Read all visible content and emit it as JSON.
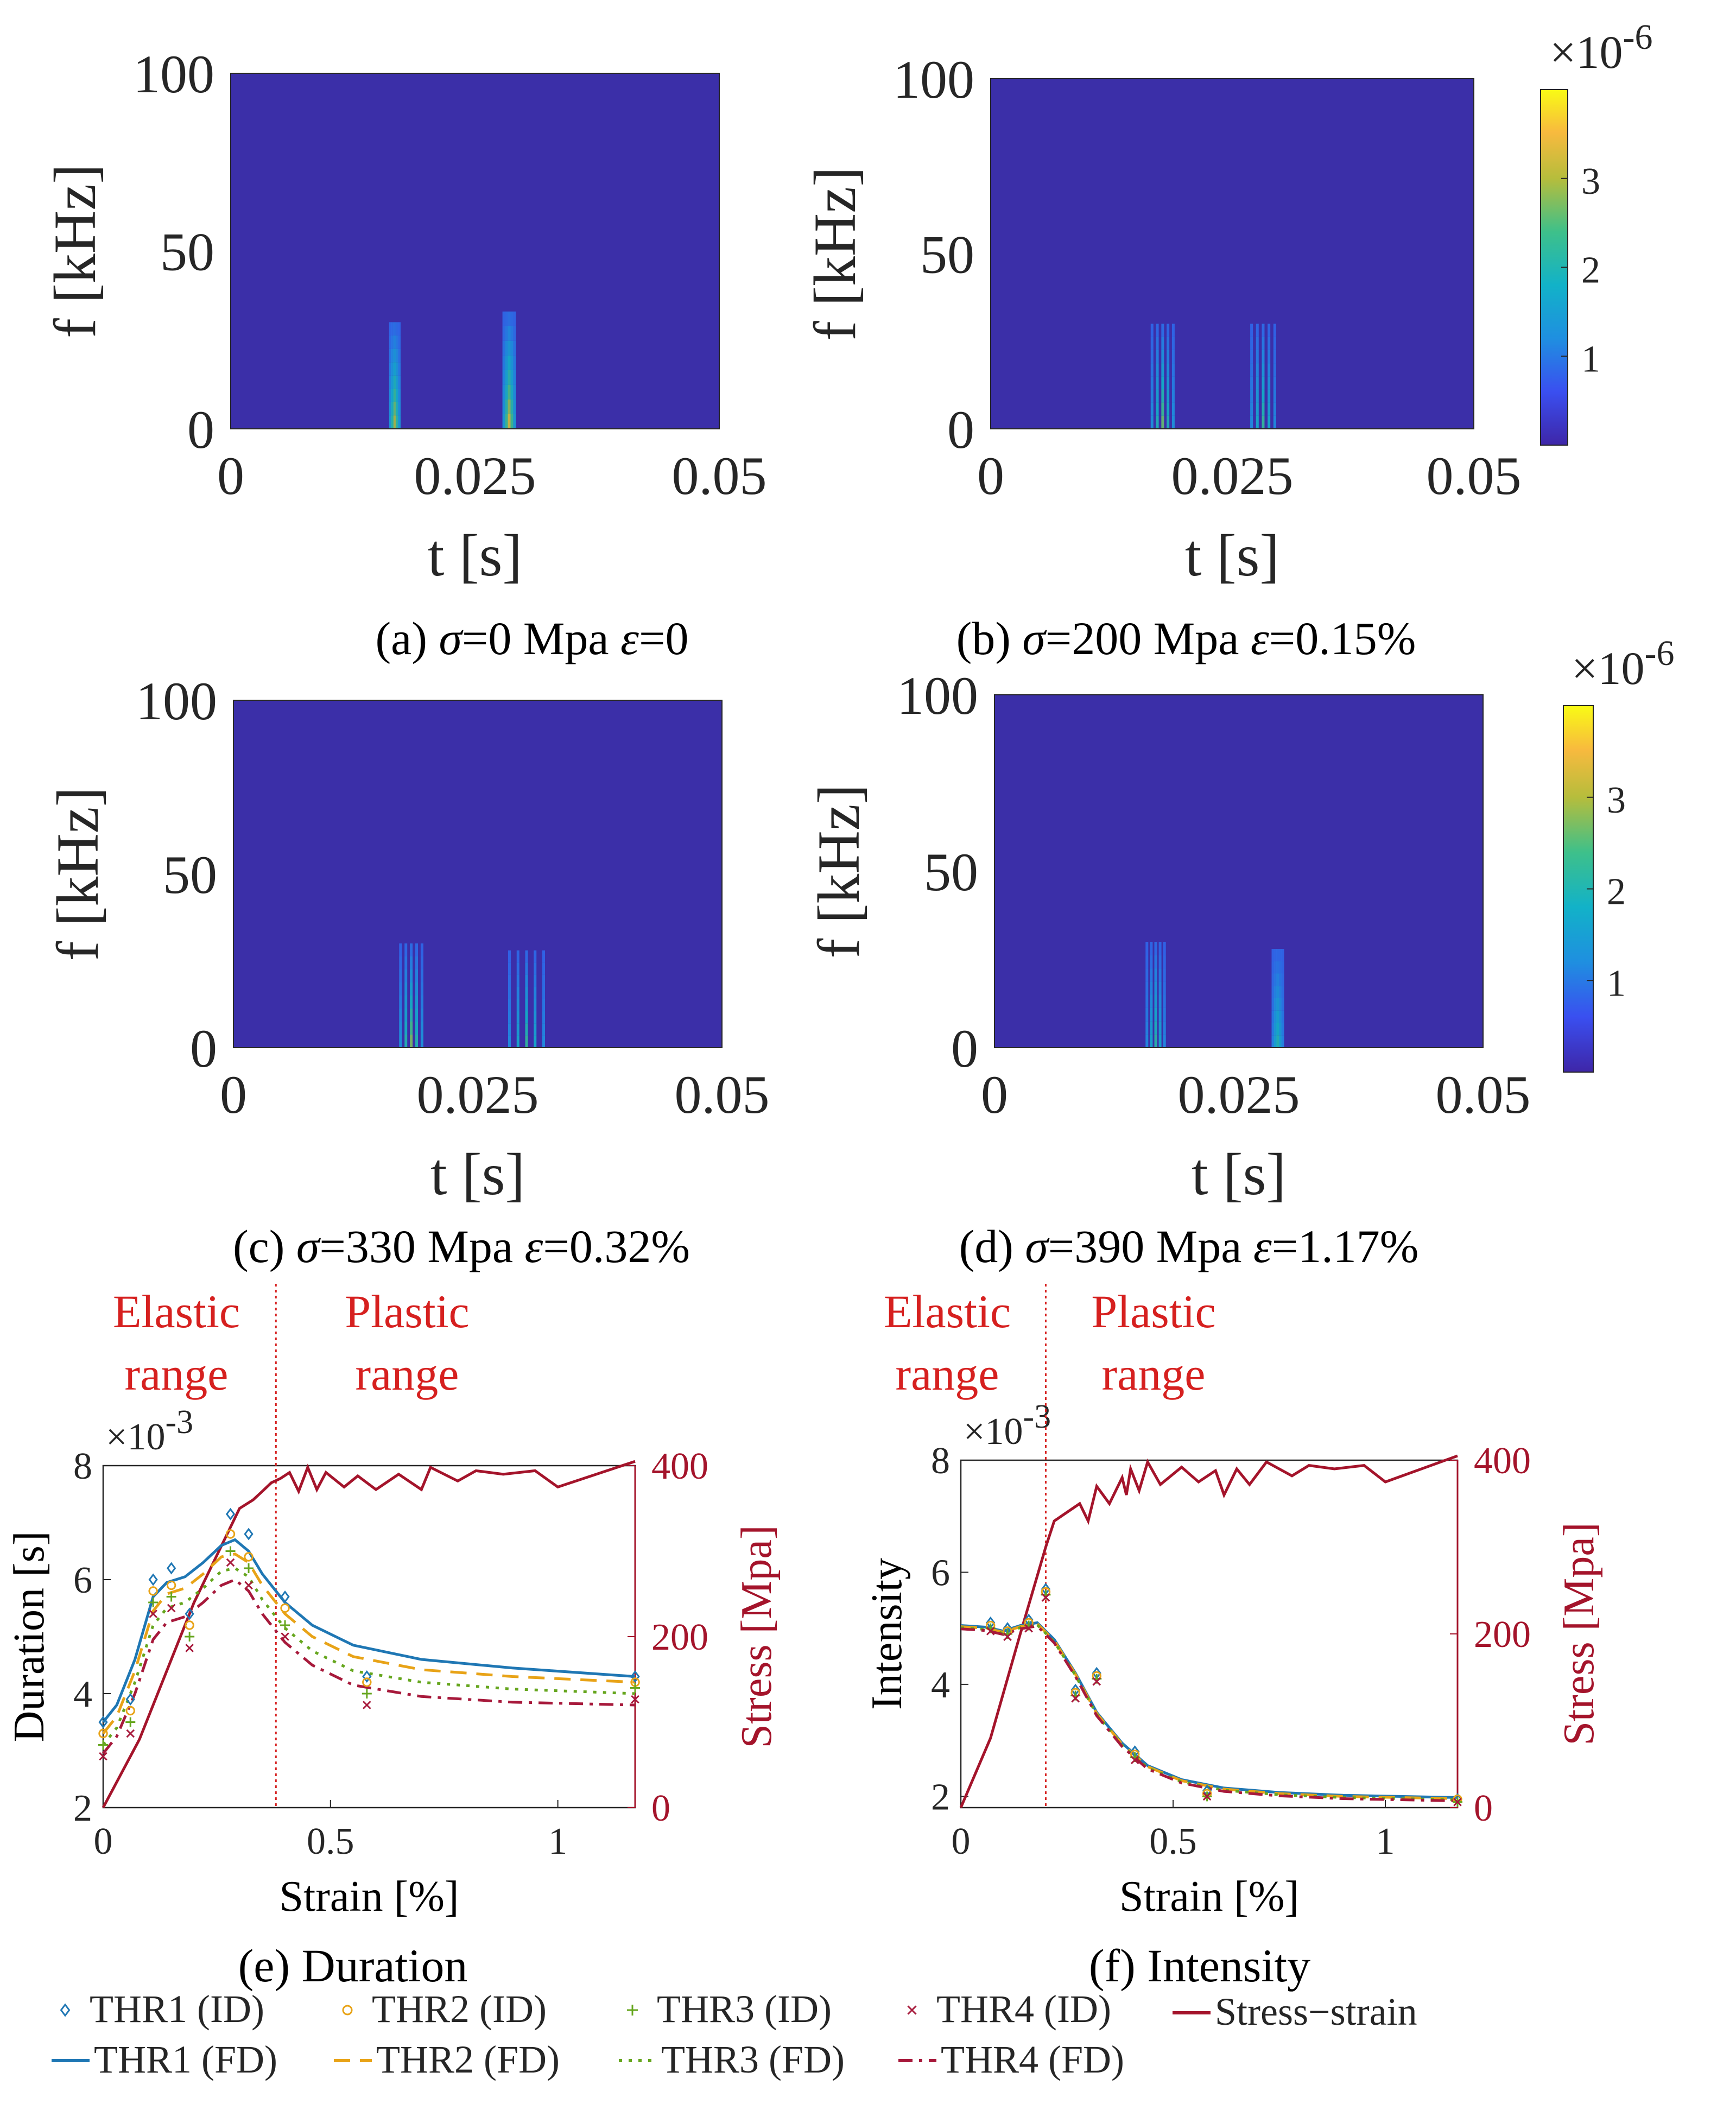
{
  "colors": {
    "bg_panel": "#3b2fa8",
    "thr1": "#1f77b4",
    "thr2": "#e8a317",
    "thr3": "#66a61e",
    "thr4": "#a7193b",
    "stress": "#a4142b",
    "red_text": "#d6201f",
    "axis": "#262626"
  },
  "chart_data": [
    {
      "type": "heatmap",
      "id": "a",
      "caption_prefix": "(a) ",
      "caption_sigma": "σ",
      "caption_mid": "=0 Mpa ",
      "caption_eps": "ε",
      "caption_tail": "=0",
      "xlabel": "t [s]",
      "ylabel": "f [kHz]",
      "xlim": [
        0,
        0.05
      ],
      "ylim": [
        0,
        100
      ],
      "xticks": [
        "0",
        "0.025",
        "0.05"
      ],
      "yticks": [
        "0",
        "50",
        "100"
      ],
      "bursts": [
        {
          "t": 0.0168,
          "w": 0.0009,
          "fmax": 30,
          "amp": 0.9
        },
        {
          "t": 0.0285,
          "w": 0.0011,
          "fmax": 33,
          "amp": 1.0
        }
      ]
    },
    {
      "type": "heatmap",
      "id": "b",
      "caption_prefix": "(b) ",
      "caption_sigma": "σ",
      "caption_mid": "=200 Mpa ",
      "caption_eps": "ε",
      "caption_tail": "=0.15%",
      "xlabel": "t [s]",
      "ylabel": "f [kHz]",
      "xlim": [
        0,
        0.05
      ],
      "ylim": [
        0,
        100
      ],
      "xticks": [
        "0",
        "0.025",
        "0.05"
      ],
      "yticks": [
        "0",
        "50",
        "100"
      ],
      "colorbar": {
        "multiplier": "×10",
        "exponent": "-6",
        "ticks": [
          "1",
          "2",
          "3"
        ],
        "range": [
          0,
          4
        ]
      },
      "bursts": [
        {
          "t": 0.0178,
          "w": 0.0022,
          "fmax": 30,
          "amp": 0.75
        },
        {
          "t": 0.0282,
          "w": 0.0024,
          "fmax": 30,
          "amp": 0.6
        }
      ]
    },
    {
      "type": "heatmap",
      "id": "c",
      "caption_prefix": "(c) ",
      "caption_sigma": "σ",
      "caption_mid": "=330 Mpa ",
      "caption_eps": "ε",
      "caption_tail": "=0.32%",
      "xlabel": "t [s]",
      "ylabel": "f [kHz]",
      "xlim": [
        0,
        0.05
      ],
      "ylim": [
        0,
        100
      ],
      "xticks": [
        "0",
        "0.025",
        "0.05"
      ],
      "yticks": [
        "0",
        "50",
        "100"
      ],
      "bursts": [
        {
          "t": 0.0182,
          "w": 0.0022,
          "fmax": 30,
          "amp": 0.8
        },
        {
          "t": 0.03,
          "w": 0.0035,
          "fmax": 28,
          "amp": 0.6
        }
      ]
    },
    {
      "type": "heatmap",
      "id": "d",
      "caption_prefix": "(d) ",
      "caption_sigma": "σ",
      "caption_mid": "=390 Mpa ",
      "caption_eps": "ε",
      "caption_tail": "=1.17%",
      "xlabel": "t [s]",
      "ylabel": "f [kHz]",
      "xlim": [
        0,
        0.05
      ],
      "ylim": [
        0,
        100
      ],
      "xticks": [
        "0",
        "0.025",
        "0.05"
      ],
      "yticks": [
        "0",
        "50",
        "100"
      ],
      "colorbar": {
        "multiplier": "×10",
        "exponent": "-6",
        "ticks": [
          "1",
          "2",
          "3"
        ],
        "range": [
          0,
          4
        ]
      },
      "bursts": [
        {
          "t": 0.0165,
          "w": 0.0018,
          "fmax": 30,
          "amp": 0.55
        },
        {
          "t": 0.029,
          "w": 0.001,
          "fmax": 28,
          "amp": 0.5
        }
      ]
    },
    {
      "type": "line",
      "id": "e",
      "caption": "(e) Duration",
      "xlabel": "Strain [%]",
      "ylabel": "Duration [s]",
      "y2label": "Stress [Mpa]",
      "xlim": [
        0,
        1.17
      ],
      "ylim": [
        2,
        8
      ],
      "y2lim": [
        0,
        400
      ],
      "xticks": [
        "0",
        "0.5",
        "1"
      ],
      "yticks": [
        "2",
        "4",
        "6",
        "8"
      ],
      "y2ticks": [
        "0",
        "200",
        "400"
      ],
      "multiplier": "×10",
      "exponent": "-3",
      "elastic_label": [
        "Elastic",
        "range"
      ],
      "plastic_label": [
        "Plastic",
        "range"
      ],
      "boundary_x": 0.38,
      "id_series": [
        {
          "name": "THR1 (ID)",
          "marker": "diamond",
          "x": [
            0,
            0.06,
            0.11,
            0.15,
            0.19,
            0.28,
            0.32,
            0.4,
            0.58,
            1.17
          ],
          "y": [
            3.5,
            3.9,
            6.0,
            6.2,
            5.4,
            7.15,
            6.8,
            5.7,
            4.3,
            4.3
          ]
        },
        {
          "name": "THR2 (ID)",
          "marker": "circle",
          "x": [
            0,
            0.06,
            0.11,
            0.15,
            0.19,
            0.28,
            0.32,
            0.4,
            0.58,
            1.17
          ],
          "y": [
            3.3,
            3.7,
            5.8,
            5.9,
            5.2,
            6.8,
            6.4,
            5.5,
            4.2,
            4.2
          ]
        },
        {
          "name": "THR3 (ID)",
          "marker": "plus",
          "x": [
            0,
            0.06,
            0.11,
            0.15,
            0.19,
            0.28,
            0.32,
            0.4,
            0.58,
            1.17
          ],
          "y": [
            3.1,
            3.5,
            5.6,
            5.7,
            5.0,
            6.5,
            6.2,
            5.2,
            4.0,
            4.1
          ]
        },
        {
          "name": "THR4 (ID)",
          "marker": "x",
          "x": [
            0,
            0.06,
            0.11,
            0.15,
            0.19,
            0.28,
            0.32,
            0.4,
            0.58,
            1.17
          ],
          "y": [
            2.9,
            3.3,
            5.4,
            5.5,
            4.8,
            6.3,
            5.9,
            5.0,
            3.8,
            3.9
          ]
        }
      ],
      "fd_series": [
        {
          "name": "THR1 (FD)",
          "dash": "solid",
          "x": [
            0,
            0.03,
            0.07,
            0.11,
            0.14,
            0.18,
            0.22,
            0.26,
            0.29,
            0.32,
            0.35,
            0.4,
            0.46,
            0.55,
            0.7,
            0.9,
            1.17
          ],
          "y": [
            3.5,
            3.8,
            4.6,
            5.7,
            5.95,
            6.05,
            6.3,
            6.6,
            6.7,
            6.5,
            6.1,
            5.6,
            5.2,
            4.85,
            4.6,
            4.45,
            4.3
          ]
        },
        {
          "name": "THR2 (FD)",
          "dash": "dashed",
          "x": [
            0,
            0.03,
            0.07,
            0.11,
            0.14,
            0.18,
            0.22,
            0.26,
            0.29,
            0.32,
            0.35,
            0.4,
            0.46,
            0.55,
            0.7,
            0.9,
            1.17
          ],
          "y": [
            3.3,
            3.6,
            4.4,
            5.45,
            5.75,
            5.85,
            6.1,
            6.4,
            6.45,
            6.3,
            5.9,
            5.4,
            5.0,
            4.65,
            4.42,
            4.3,
            4.2
          ]
        },
        {
          "name": "THR3 (FD)",
          "dash": "dotted",
          "x": [
            0,
            0.03,
            0.07,
            0.11,
            0.14,
            0.18,
            0.22,
            0.26,
            0.29,
            0.32,
            0.35,
            0.4,
            0.46,
            0.55,
            0.7,
            0.9,
            1.17
          ],
          "y": [
            3.1,
            3.4,
            4.2,
            5.2,
            5.5,
            5.6,
            5.85,
            6.15,
            6.2,
            6.05,
            5.65,
            5.15,
            4.75,
            4.4,
            4.2,
            4.08,
            4.0
          ]
        },
        {
          "name": "THR4 (FD)",
          "dash": "dashdot",
          "x": [
            0,
            0.03,
            0.07,
            0.11,
            0.14,
            0.18,
            0.22,
            0.26,
            0.29,
            0.32,
            0.35,
            0.4,
            0.46,
            0.55,
            0.7,
            0.9,
            1.17
          ],
          "y": [
            2.95,
            3.25,
            4.0,
            4.95,
            5.25,
            5.35,
            5.6,
            5.9,
            6.0,
            5.8,
            5.4,
            4.9,
            4.5,
            4.15,
            3.95,
            3.85,
            3.8
          ]
        }
      ],
      "stress_strain": {
        "name": "Stress−strain",
        "x": [
          0,
          0.08,
          0.2,
          0.3,
          0.33,
          0.35,
          0.37,
          0.39,
          0.41,
          0.43,
          0.45,
          0.47,
          0.49,
          0.53,
          0.56,
          0.6,
          0.65,
          0.7,
          0.72,
          0.78,
          0.82,
          0.88,
          0.95,
          1.0,
          1.17
        ],
        "y": [
          0,
          80,
          240,
          350,
          360,
          370,
          380,
          385,
          392,
          370,
          398,
          372,
          392,
          375,
          388,
          372,
          390,
          372,
          398,
          382,
          394,
          390,
          394,
          375,
          405
        ]
      }
    },
    {
      "type": "line",
      "id": "f",
      "caption": "(f) Intensity",
      "xlabel": "Strain [%]",
      "ylabel": "Intensity",
      "y2label": "Stress [Mpa]",
      "xlim": [
        0,
        1.17
      ],
      "ylim": [
        1.8,
        8
      ],
      "y2lim": [
        0,
        400
      ],
      "xticks": [
        "0",
        "0.5",
        "1"
      ],
      "yticks": [
        "2",
        "4",
        "6",
        "8"
      ],
      "y2ticks": [
        "0",
        "200",
        "400"
      ],
      "multiplier": "×10",
      "exponent": "-3",
      "elastic_label": [
        "Elastic",
        "range"
      ],
      "plastic_label": [
        "Plastic",
        "range"
      ],
      "boundary_x": 0.2,
      "id_series": [
        {
          "name": "THR1 (ID)",
          "marker": "diamond",
          "x": [
            0.07,
            0.11,
            0.16,
            0.2,
            0.27,
            0.32,
            0.41,
            0.58,
            1.17
          ],
          "y": [
            5.1,
            5.0,
            5.15,
            5.7,
            3.9,
            4.2,
            2.8,
            2.1,
            1.95
          ]
        },
        {
          "name": "THR2 (ID)",
          "marker": "circle",
          "x": [
            0.07,
            0.11,
            0.16,
            0.2,
            0.27,
            0.32,
            0.41,
            0.58,
            1.17
          ],
          "y": [
            5.05,
            4.95,
            5.1,
            5.65,
            3.85,
            4.15,
            2.75,
            2.05,
            1.95
          ]
        },
        {
          "name": "THR3 (ID)",
          "marker": "plus",
          "x": [
            0.07,
            0.11,
            0.16,
            0.2,
            0.27,
            0.32,
            0.41,
            0.58,
            1.17
          ],
          "y": [
            5.0,
            4.9,
            5.05,
            5.6,
            3.8,
            4.1,
            2.7,
            2.0,
            1.9
          ]
        },
        {
          "name": "THR4 (ID)",
          "marker": "x",
          "x": [
            0.07,
            0.11,
            0.16,
            0.2,
            0.27,
            0.32,
            0.41,
            0.58,
            1.17
          ],
          "y": [
            4.95,
            4.85,
            5.0,
            5.55,
            3.75,
            4.05,
            2.65,
            2.0,
            1.9
          ]
        }
      ],
      "fd_series": [
        {
          "name": "THR1 (FD)",
          "dash": "solid",
          "x": [
            0,
            0.06,
            0.1,
            0.14,
            0.18,
            0.22,
            0.27,
            0.32,
            0.38,
            0.44,
            0.52,
            0.62,
            0.75,
            0.9,
            1.17
          ],
          "y": [
            5.05,
            5.02,
            4.95,
            5.05,
            5.1,
            4.8,
            4.2,
            3.5,
            2.95,
            2.55,
            2.3,
            2.15,
            2.07,
            2.02,
            1.98
          ]
        },
        {
          "name": "THR2 (FD)",
          "dash": "dashed",
          "x": [
            0,
            0.06,
            0.1,
            0.14,
            0.18,
            0.22,
            0.27,
            0.32,
            0.38,
            0.44,
            0.52,
            0.62,
            0.75,
            0.9,
            1.17
          ],
          "y": [
            5.03,
            5.0,
            4.93,
            5.03,
            5.08,
            4.78,
            4.18,
            3.48,
            2.93,
            2.53,
            2.28,
            2.13,
            2.05,
            2.0,
            1.96
          ]
        },
        {
          "name": "THR3 (FD)",
          "dash": "dotted",
          "x": [
            0,
            0.06,
            0.1,
            0.14,
            0.18,
            0.22,
            0.27,
            0.32,
            0.38,
            0.44,
            0.52,
            0.62,
            0.75,
            0.9,
            1.17
          ],
          "y": [
            5.01,
            4.98,
            4.91,
            5.01,
            5.06,
            4.76,
            4.16,
            3.46,
            2.91,
            2.51,
            2.26,
            2.11,
            2.03,
            1.98,
            1.94
          ]
        },
        {
          "name": "THR4 (FD)",
          "dash": "dashdot",
          "x": [
            0,
            0.06,
            0.1,
            0.14,
            0.18,
            0.22,
            0.27,
            0.32,
            0.38,
            0.44,
            0.52,
            0.62,
            0.75,
            0.9,
            1.17
          ],
          "y": [
            4.99,
            4.96,
            4.89,
            4.99,
            5.04,
            4.74,
            4.14,
            3.44,
            2.89,
            2.49,
            2.24,
            2.09,
            2.01,
            1.96,
            1.92
          ]
        }
      ],
      "stress_strain": {
        "name": "Stress−strain",
        "x": [
          0,
          0.07,
          0.14,
          0.2,
          0.22,
          0.25,
          0.28,
          0.3,
          0.32,
          0.35,
          0.38,
          0.39,
          0.4,
          0.42,
          0.44,
          0.47,
          0.52,
          0.56,
          0.6,
          0.62,
          0.65,
          0.68,
          0.72,
          0.78,
          0.82,
          0.88,
          0.95,
          1.0,
          1.17
        ],
        "y": [
          0,
          80,
          200,
          300,
          330,
          340,
          350,
          330,
          370,
          350,
          380,
          360,
          390,
          365,
          398,
          372,
          392,
          375,
          388,
          360,
          390,
          372,
          398,
          382,
          394,
          390,
          394,
          375,
          405
        ]
      }
    }
  ],
  "legend": {
    "items": [
      {
        "label": "THR1 (ID)",
        "kind": "marker",
        "marker": "diamond",
        "series": "thr1"
      },
      {
        "label": "THR2 (ID)",
        "kind": "marker",
        "marker": "circle",
        "series": "thr2"
      },
      {
        "label": "THR3 (ID)",
        "kind": "marker",
        "marker": "plus",
        "series": "thr3"
      },
      {
        "label": "THR4 (ID)",
        "kind": "marker",
        "marker": "x",
        "series": "thr4"
      },
      {
        "label": "Stress−strain",
        "kind": "line",
        "dash": "solid",
        "series": "stress"
      },
      {
        "label": "THR1 (FD)",
        "kind": "line",
        "dash": "solid",
        "series": "thr1"
      },
      {
        "label": "THR2 (FD)",
        "kind": "line",
        "dash": "dashed",
        "series": "thr2"
      },
      {
        "label": "THR3 (FD)",
        "kind": "line",
        "dash": "dotted",
        "series": "thr3"
      },
      {
        "label": "THR4 (FD)",
        "kind": "line",
        "dash": "dashdot",
        "series": "thr4"
      }
    ]
  }
}
